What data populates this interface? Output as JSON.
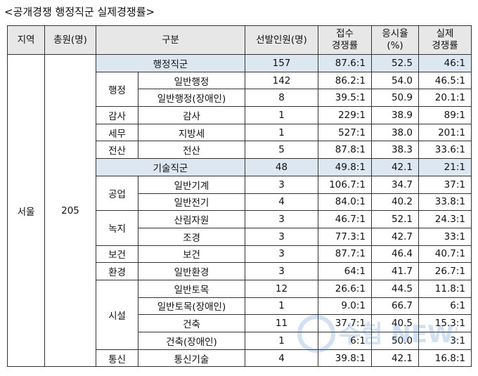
{
  "title": "<공개경쟁 행정직군 실제경쟁률>",
  "headers": {
    "region": "지역",
    "total": "총원(명)",
    "category": "구분",
    "selected": "선발인원(명)",
    "applied_l1": "접수",
    "applied_l2": "경쟁률",
    "rate_l1": "응시율",
    "rate_l2": "(%)",
    "actual_l1": "실제",
    "actual_l2": "경쟁률"
  },
  "region": "서울",
  "total": "205",
  "groups": [
    {
      "name": "행정직군",
      "selected": "157",
      "applied": "87.6:1",
      "rate": "52.5",
      "actual": "46:1",
      "subgroups": [
        {
          "name": "행정",
          "rows": [
            {
              "name": "일반행정",
              "selected": "142",
              "applied": "86.2:1",
              "rate": "54.0",
              "actual": "46.5:1"
            },
            {
              "name": "일반행정(장애인)",
              "selected": "8",
              "applied": "39.5:1",
              "rate": "50.9",
              "actual": "20.1:1"
            }
          ]
        },
        {
          "name": "감사",
          "rows": [
            {
              "name": "감사",
              "selected": "1",
              "applied": "229:1",
              "rate": "38.9",
              "actual": "89:1"
            }
          ]
        },
        {
          "name": "세무",
          "rows": [
            {
              "name": "지방세",
              "selected": "1",
              "applied": "527:1",
              "rate": "38.0",
              "actual": "201:1"
            }
          ]
        },
        {
          "name": "전산",
          "rows": [
            {
              "name": "전산",
              "selected": "5",
              "applied": "87.8:1",
              "rate": "38.3",
              "actual": "33.6:1"
            }
          ]
        }
      ]
    },
    {
      "name": "기술직군",
      "selected": "48",
      "applied": "49.8:1",
      "rate": "42.1",
      "actual": "21:1",
      "subgroups": [
        {
          "name": "공업",
          "rows": [
            {
              "name": "일반기계",
              "selected": "3",
              "applied": "106.7:1",
              "rate": "34.7",
              "actual": "37:1"
            },
            {
              "name": "일반전기",
              "selected": "4",
              "applied": "84.0:1",
              "rate": "40.2",
              "actual": "33.8:1"
            }
          ]
        },
        {
          "name": "녹지",
          "rows": [
            {
              "name": "산림자원",
              "selected": "3",
              "applied": "46.7:1",
              "rate": "52.1",
              "actual": "24.3:1"
            },
            {
              "name": "조경",
              "selected": "3",
              "applied": "77.3:1",
              "rate": "42.7",
              "actual": "33:1"
            }
          ]
        },
        {
          "name": "보건",
          "rows": [
            {
              "name": "보건",
              "selected": "3",
              "applied": "87.7:1",
              "rate": "46.4",
              "actual": "40.7:1"
            }
          ]
        },
        {
          "name": "환경",
          "rows": [
            {
              "name": "일반환경",
              "selected": "3",
              "applied": "64:1",
              "rate": "41.7",
              "actual": "26.7:1"
            }
          ]
        },
        {
          "name": "시설",
          "rows": [
            {
              "name": "일반토목",
              "selected": "12",
              "applied": "26.6:1",
              "rate": "44.5",
              "actual": "11.8:1"
            },
            {
              "name": "일반토목(장애인)",
              "selected": "1",
              "applied": "9.0:1",
              "rate": "66.7",
              "actual": "6:1"
            },
            {
              "name": "건축",
              "selected": "11",
              "applied": "37.7:1",
              "rate": "40.5",
              "actual": "15.3:1"
            },
            {
              "name": "건축(장애인)",
              "selected": "1",
              "applied": "6:1",
              "rate": "50.0",
              "actual": "3:1"
            }
          ]
        },
        {
          "name": "통신",
          "rows": [
            {
              "name": "통신기술",
              "selected": "4",
              "applied": "39.8:1",
              "rate": "42.1",
              "actual": "16.8:1"
            }
          ]
        }
      ]
    }
  ],
  "watermark": "수험 NEWS"
}
